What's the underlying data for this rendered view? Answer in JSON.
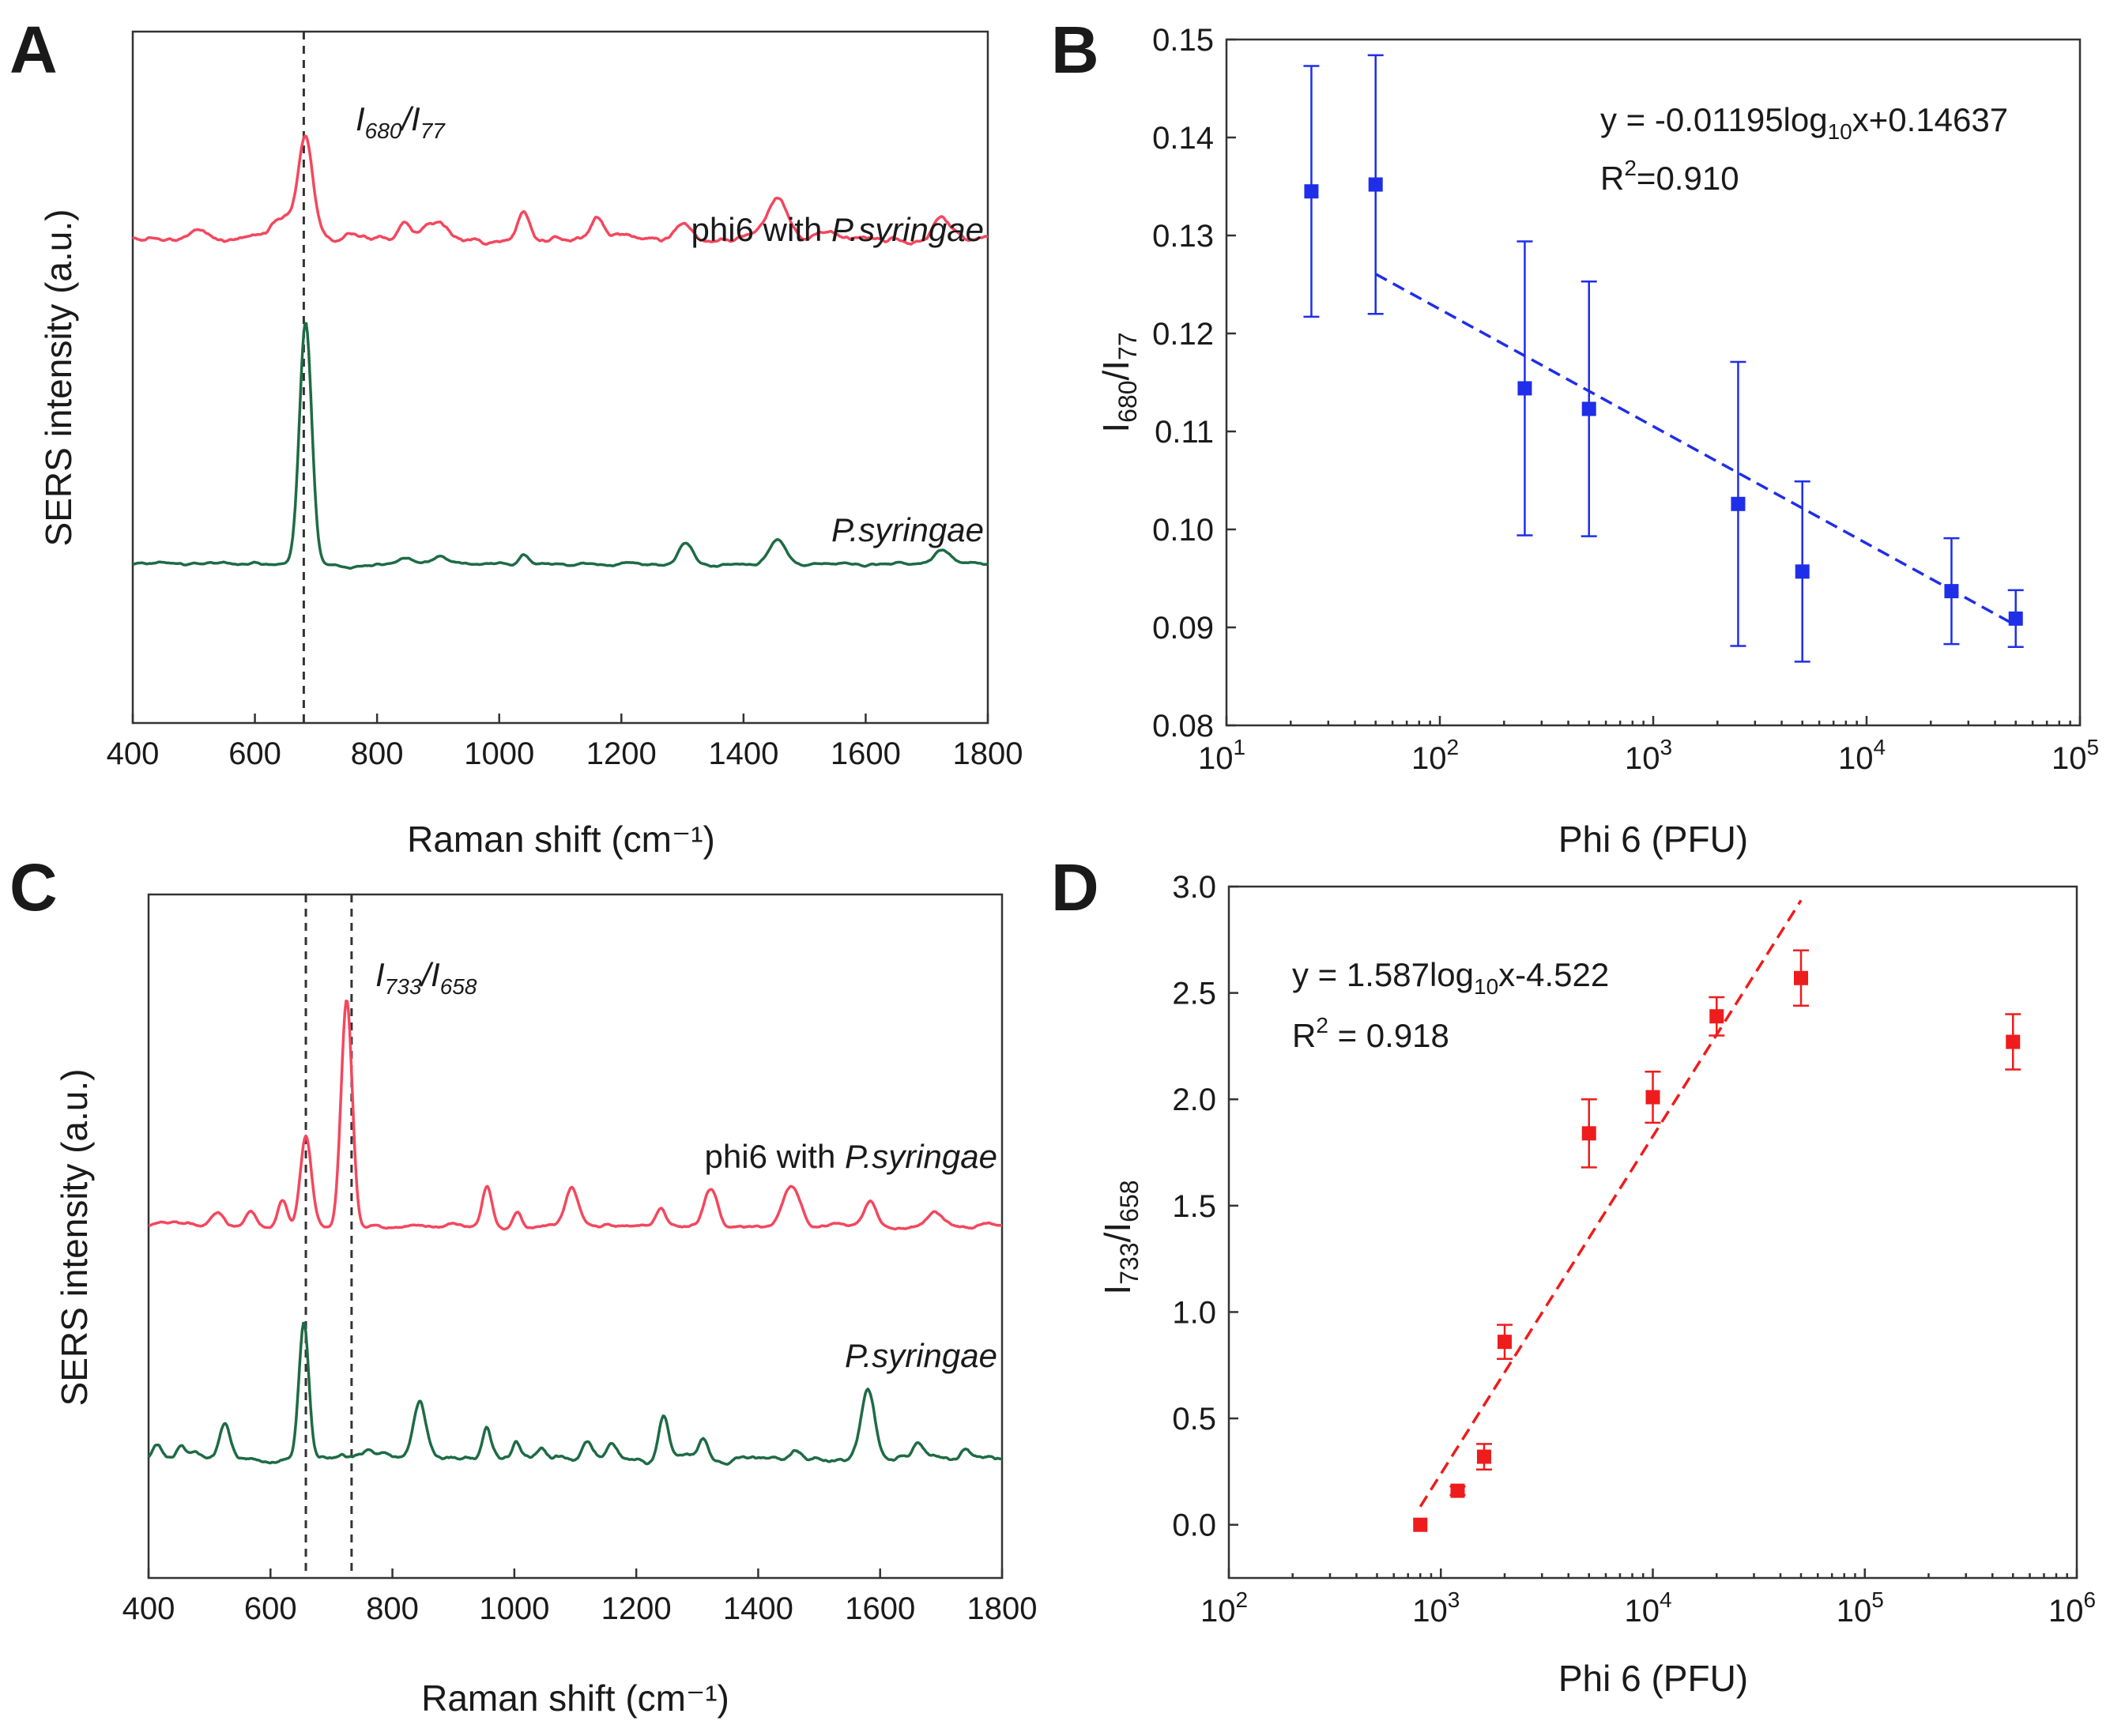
{
  "chart_data": [
    {
      "panel": "A",
      "type": "line",
      "xlabel": "Raman shift (cm⁻¹)",
      "ylabel": "SERS intensity (a.u.)",
      "xlim": [
        400,
        1800
      ],
      "xticks": [
        400,
        600,
        800,
        1000,
        1200,
        1400,
        1600,
        1800
      ],
      "marker_lines": [
        680
      ],
      "ratio_label": {
        "prefix": "I",
        "num_sub": "680",
        "sep": "/I",
        "den_sub": "77"
      },
      "series": [
        {
          "name_plain": "phi6 with ",
          "name_italic": "P.syringae",
          "color": "#f4475e",
          "baseline": 0.7,
          "noise_seed": 11,
          "noise_amp": 0.006,
          "peaks": [
            [
              648,
              0.03,
              22
            ],
            [
              683,
              0.14,
              12
            ],
            [
              843,
              0.025,
              10
            ],
            [
              880,
              0.025,
              10
            ],
            [
              905,
              0.02,
              10
            ],
            [
              1040,
              0.04,
              9
            ],
            [
              1160,
              0.03,
              9
            ],
            [
              1300,
              0.02,
              14
            ],
            [
              1455,
              0.06,
              16
            ],
            [
              1725,
              0.035,
              14
            ],
            [
              512,
              0.012,
              10
            ],
            [
              760,
              0.012,
              10
            ],
            [
              1540,
              0.012,
              12
            ]
          ]
        },
        {
          "name_plain": "",
          "name_italic": "P.syringae",
          "color": "#1e6b45",
          "baseline": 0.23,
          "noise_seed": 23,
          "noise_amp": 0.003,
          "peaks": [
            [
              683,
              0.35,
              10
            ],
            [
              1040,
              0.016,
              8
            ],
            [
              1305,
              0.03,
              12
            ],
            [
              1455,
              0.035,
              14
            ],
            [
              1725,
              0.02,
              12
            ],
            [
              848,
              0.01,
              10
            ],
            [
              905,
              0.01,
              10
            ]
          ]
        }
      ]
    },
    {
      "panel": "B",
      "type": "scatter",
      "xscale": "log",
      "xlabel": "Phi 6 (PFU)",
      "ylabel": {
        "base": "I",
        "num_sub": "680",
        "sep": "/I",
        "den_sub": "77"
      },
      "xlim": [
        10,
        100000
      ],
      "ylim": [
        0.08,
        0.15
      ],
      "xticks_exp": [
        1,
        2,
        3,
        4,
        5
      ],
      "xtick_base": "10",
      "yticks": [
        "0.08",
        "0.09",
        "0.10",
        "0.11",
        "0.12",
        "0.13",
        "0.14",
        "0.15"
      ],
      "color": "#1f2ee8",
      "x": [
        25,
        50,
        250,
        500,
        2500,
        5000,
        25000,
        50000
      ],
      "y": [
        0.1345,
        0.1352,
        0.1144,
        0.1123,
        0.1026,
        0.0957,
        0.0937,
        0.0909
      ],
      "yerr": [
        0.0128,
        0.0132,
        0.015,
        0.013,
        0.0145,
        0.0092,
        0.0054,
        0.0029
      ],
      "fit": {
        "slope": -0.01195,
        "intercept": 0.14637,
        "x_range": [
          50,
          50000
        ]
      },
      "equation": {
        "lead": "y = -0.01195log",
        "sub": "10",
        "tail": "x+0.14637"
      },
      "r2": {
        "lead": "R",
        "sup": "2",
        "tail": "=0.910"
      }
    },
    {
      "panel": "C",
      "type": "line",
      "xlabel": "Raman shift (cm⁻¹)",
      "ylabel": "SERS intensity (a.u.)",
      "xlim": [
        400,
        1800
      ],
      "xticks": [
        400,
        600,
        800,
        1000,
        1200,
        1400,
        1600,
        1800
      ],
      "marker_lines": [
        658,
        733
      ],
      "ratio_label": {
        "prefix": "I",
        "num_sub": "733",
        "sep": "/I",
        "den_sub": "658"
      },
      "series": [
        {
          "name_plain": "phi6 with ",
          "name_italic": "P.syringae",
          "color": "#f4475e",
          "baseline": 0.515,
          "noise_seed": 37,
          "noise_amp": 0.004,
          "peaks": [
            [
              512,
              0.02,
              10
            ],
            [
              568,
              0.02,
              8
            ],
            [
              620,
              0.04,
              8
            ],
            [
              658,
              0.13,
              9
            ],
            [
              725,
              0.33,
              9
            ],
            [
              955,
              0.06,
              8
            ],
            [
              1005,
              0.02,
              7
            ],
            [
              1095,
              0.055,
              10
            ],
            [
              1240,
              0.025,
              8
            ],
            [
              1322,
              0.055,
              11
            ],
            [
              1455,
              0.06,
              14
            ],
            [
              1583,
              0.035,
              10
            ],
            [
              1690,
              0.02,
              14
            ]
          ]
        },
        {
          "name_plain": "",
          "name_italic": "P.syringae",
          "color": "#1e6b45",
          "baseline": 0.175,
          "noise_seed": 5,
          "noise_amp": 0.006,
          "peaks": [
            [
              415,
              0.02,
              7
            ],
            [
              452,
              0.015,
              7
            ],
            [
              525,
              0.055,
              8
            ],
            [
              655,
              0.2,
              8
            ],
            [
              760,
              0.01,
              8
            ],
            [
              845,
              0.08,
              10
            ],
            [
              955,
              0.04,
              7
            ],
            [
              1003,
              0.025,
              7
            ],
            [
              1045,
              0.015,
              7
            ],
            [
              1120,
              0.025,
              8
            ],
            [
              1160,
              0.015,
              8
            ],
            [
              1245,
              0.065,
              8
            ],
            [
              1310,
              0.03,
              8
            ],
            [
              1460,
              0.01,
              8
            ],
            [
              1580,
              0.1,
              11
            ],
            [
              1660,
              0.02,
              8
            ],
            [
              1740,
              0.015,
              8
            ]
          ]
        }
      ]
    },
    {
      "panel": "D",
      "type": "scatter",
      "xscale": "log",
      "xlabel": "Phi 6 (PFU)",
      "ylabel": {
        "base": "I",
        "num_sub": "733",
        "sep": "/I",
        "den_sub": "658"
      },
      "xlim": [
        100,
        1000000
      ],
      "ylim": [
        -0.25,
        3.0
      ],
      "xticks_exp": [
        2,
        3,
        4,
        5,
        6
      ],
      "xtick_base": "10",
      "yticks": [
        "0.0",
        "0.5",
        "1.0",
        "1.5",
        "2.0",
        "2.5",
        "3.0"
      ],
      "color": "#ee1c1c",
      "x": [
        800,
        1200,
        1600,
        2000,
        5000,
        10000,
        20000,
        50000,
        500000
      ],
      "y": [
        0.0,
        0.16,
        0.32,
        0.86,
        1.84,
        2.01,
        2.39,
        2.57,
        2.27
      ],
      "yerr": [
        0.0,
        0.02,
        0.06,
        0.08,
        0.16,
        0.12,
        0.09,
        0.13,
        0.13
      ],
      "fit": {
        "slope": 1.587,
        "intercept": -4.522,
        "x_range": [
          800,
          50000
        ]
      },
      "equation": {
        "lead": "y = 1.587log",
        "sub": "10",
        "tail": "x-4.522"
      },
      "r2": {
        "lead": "R",
        "sup": "2",
        "tail": " = 0.918"
      }
    }
  ]
}
